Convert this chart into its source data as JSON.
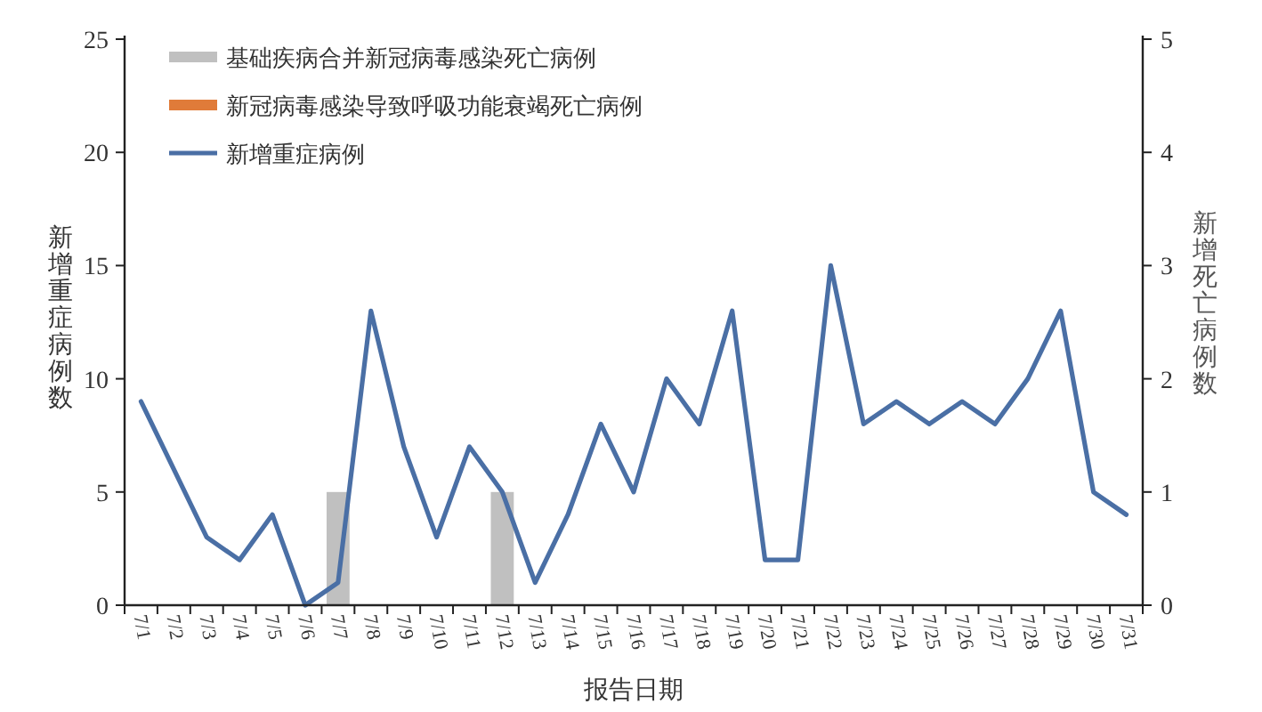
{
  "chart_data": {
    "type": "bar",
    "xlabel": "报告日期",
    "ylabel": "新增重症病例数",
    "y2label": "新增死亡病例数",
    "categories": [
      "7/1",
      "7/2",
      "7/3",
      "7/4",
      "7/5",
      "7/6",
      "7/7",
      "7/8",
      "7/9",
      "7/10",
      "7/11",
      "7/12",
      "7/13",
      "7/14",
      "7/15",
      "7/16",
      "7/17",
      "7/18",
      "7/19",
      "7/20",
      "7/21",
      "7/22",
      "7/23",
      "7/24",
      "7/25",
      "7/26",
      "7/27",
      "7/28",
      "7/29",
      "7/30",
      "7/31"
    ],
    "series": [
      {
        "name": "基础疾病合并新冠病毒感染死亡病例",
        "axis": "y2",
        "color": "#c0c0c0",
        "values": [
          null,
          null,
          null,
          null,
          null,
          null,
          1,
          null,
          null,
          null,
          null,
          1,
          null,
          null,
          null,
          null,
          null,
          null,
          null,
          null,
          null,
          null,
          null,
          null,
          null,
          null,
          null,
          null,
          null,
          null,
          null
        ]
      },
      {
        "name": "新冠病毒感染导致呼吸功能衰竭死亡病例",
        "axis": "y2",
        "color": "#e07b39",
        "values": [
          null,
          null,
          null,
          null,
          null,
          null,
          null,
          null,
          null,
          null,
          null,
          null,
          null,
          null,
          null,
          null,
          null,
          null,
          null,
          null,
          null,
          null,
          null,
          null,
          null,
          null,
          null,
          null,
          null,
          null,
          null
        ]
      },
      {
        "name": "新增重症病例",
        "type": "line",
        "color": "#4a6fa5",
        "values": [
          9,
          6,
          3,
          2,
          4,
          0,
          1,
          13,
          7,
          3,
          7,
          5,
          1,
          4,
          8,
          5,
          10,
          8,
          13,
          2,
          2,
          15,
          8,
          9,
          8,
          9,
          8,
          10,
          13,
          5,
          4
        ]
      }
    ],
    "ylim": [
      0,
      25
    ],
    "yticks": [
      0,
      5,
      10,
      15,
      20,
      25
    ],
    "y2lim": [
      0,
      5
    ],
    "y2ticks": [
      0,
      1,
      2,
      3,
      4,
      5
    ],
    "legend": "top left",
    "grid": false,
    "marker": "none",
    "line_style": "solid"
  }
}
